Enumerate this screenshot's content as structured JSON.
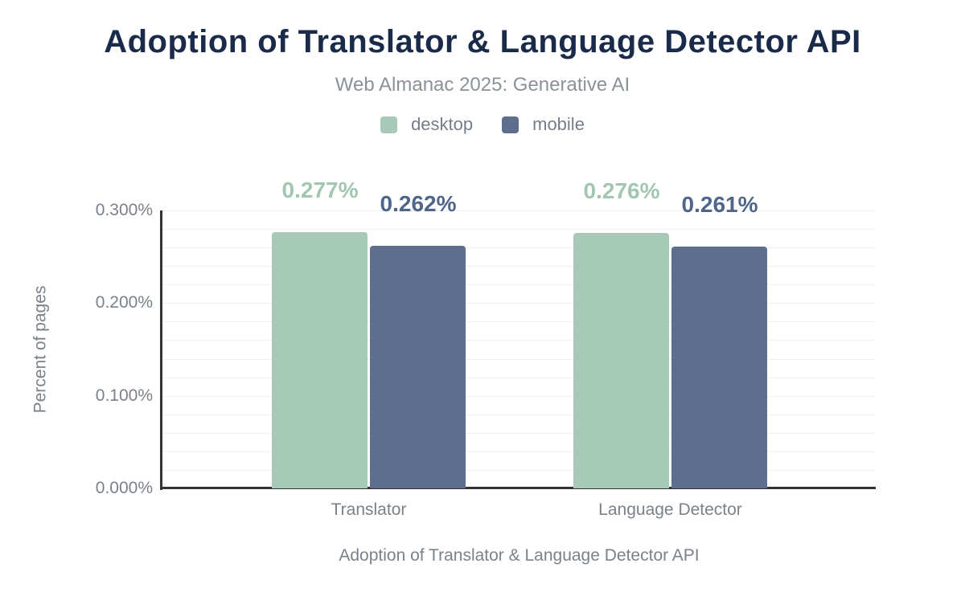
{
  "chart_data": {
    "type": "bar",
    "title": "Adoption of Translator & Language Detector API",
    "subtitle": "Web Almanac 2025: Generative AI",
    "title_color": "#1a2b49",
    "categories": [
      "Translator",
      "Language Detector"
    ],
    "series": [
      {
        "name": "desktop",
        "color": "#a7c9b8",
        "label_color": "#a2c6b1",
        "values": [
          0.277,
          0.276
        ],
        "labels": [
          "0.277%",
          "0.276%"
        ]
      },
      {
        "name": "mobile",
        "color": "#5d6f8c",
        "label_color": "#50658a",
        "values": [
          0.262,
          0.261
        ],
        "labels": [
          "0.262%",
          "0.261%"
        ]
      }
    ],
    "ylabel": "Percent of pages",
    "xlabel": "Adoption of Translator & Language Detector API",
    "ylim": [
      0,
      0.3
    ],
    "y_ticks": [
      {
        "value": 0.3,
        "label": "0.300%"
      },
      {
        "value": 0.2,
        "label": "0.200%"
      },
      {
        "value": 0.1,
        "label": "0.100%"
      },
      {
        "value": 0.0,
        "label": "0.000%"
      }
    ],
    "grid": "horizontal",
    "grid_step": 0.02,
    "gridline_color": "#f0f0f0",
    "axis_line_color": "#333333",
    "text_muted_color": "#7b8189",
    "legend_position": "top"
  }
}
